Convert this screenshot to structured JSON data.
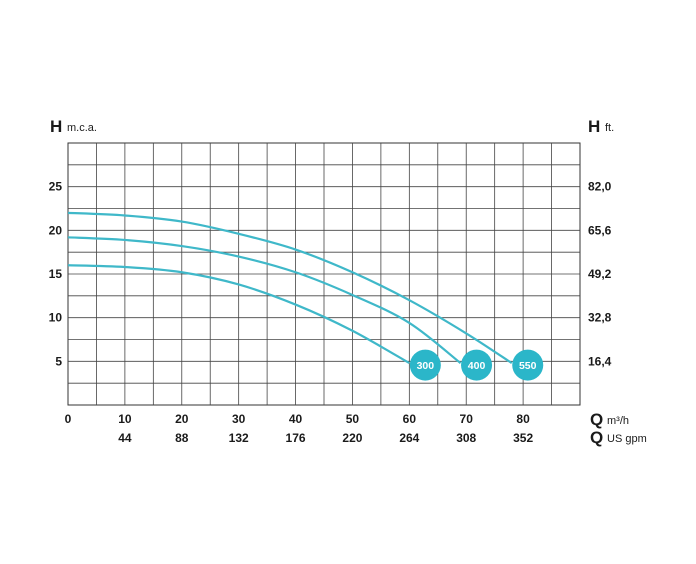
{
  "chart_data": {
    "type": "line",
    "left_axis": {
      "letter": "H",
      "unit": "m.c.a.",
      "ticks": [
        "5",
        "10",
        "15",
        "20",
        "25"
      ],
      "tick_values": [
        5,
        10,
        15,
        20,
        25
      ],
      "ylim": [
        0,
        30
      ]
    },
    "right_axis": {
      "letter": "H",
      "unit": "ft.",
      "ticks": [
        "16,4",
        "32,8",
        "49,2",
        "65,6",
        "82,0"
      ],
      "tick_values": [
        5,
        10,
        15,
        20,
        25
      ]
    },
    "x_primary": {
      "letter": "Q",
      "unit": "m³/h",
      "ticks": [
        "0",
        "10",
        "20",
        "30",
        "40",
        "50",
        "60",
        "70",
        "80"
      ],
      "tick_values": [
        0,
        10,
        20,
        30,
        40,
        50,
        60,
        70,
        80
      ],
      "xlim": [
        0,
        90
      ]
    },
    "x_secondary": {
      "letter": "Q",
      "unit": "US gpm",
      "ticks": [
        "44",
        "88",
        "132",
        "176",
        "220",
        "264",
        "308",
        "352"
      ],
      "tick_values": [
        10,
        20,
        30,
        40,
        50,
        60,
        70,
        80
      ]
    },
    "grid": true,
    "curve_color": "#3fb8c9",
    "badge_color": "#2bb6c9",
    "series": [
      {
        "name": "300",
        "x": [
          0,
          10,
          20,
          30,
          40,
          50,
          60
        ],
        "y": [
          16.0,
          15.8,
          15.2,
          13.8,
          11.5,
          8.5,
          4.8
        ]
      },
      {
        "name": "400",
        "x": [
          0,
          10,
          20,
          30,
          40,
          50,
          60,
          69
        ],
        "y": [
          19.2,
          18.9,
          18.2,
          17.0,
          15.2,
          12.6,
          9.4,
          4.8
        ]
      },
      {
        "name": "550",
        "x": [
          0,
          10,
          20,
          30,
          40,
          50,
          60,
          70,
          78
        ],
        "y": [
          22.0,
          21.7,
          21.0,
          19.6,
          17.8,
          15.2,
          12.0,
          8.2,
          4.8
        ]
      }
    ]
  }
}
